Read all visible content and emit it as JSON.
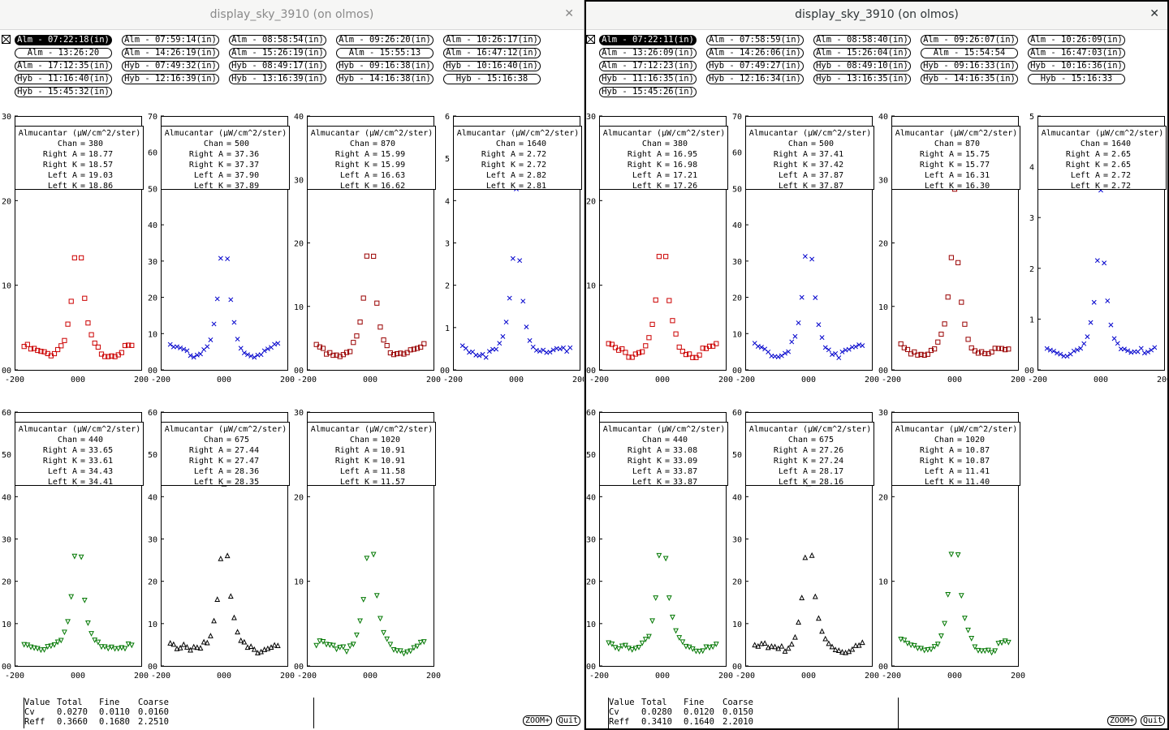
{
  "windows": [
    {
      "title": "display_sky_3910 (on olmos)",
      "buttons": [
        [
          "Alm - 07:22:18(in)",
          "Alm - 07:59:14(in)",
          "Alm - 08:58:54(in)",
          "Alm - 09:26:20(in)",
          "Alm - 10:26:17(in)"
        ],
        [
          "Alm - 13:26:20",
          "Alm - 14:26:19(in)",
          "Alm - 15:26:19(in)",
          "Alm - 15:55:13",
          "Alm - 16:47:12(in)"
        ],
        [
          "Alm - 17:12:35(in)",
          "Hyb - 07:49:32(in)",
          "Hyb - 08:49:17(in)",
          "Hyb - 09:16:38(in)",
          "Hyb - 10:16:40(in)"
        ],
        [
          "Hyb - 11:16:40(in)",
          "Hyb - 12:16:39(in)",
          "Hyb - 13:16:39(in)",
          "Hyb - 14:16:38(in)",
          "Hyb - 15:16:38"
        ],
        [
          "Hyb - 15:45:32(in)"
        ]
      ],
      "active_button": "Alm - 07:22:18(in)",
      "plots": [
        {
          "chan": "380",
          "ra": "18.77",
          "rk": "18.57",
          "la": "19.03",
          "lk": "18.86",
          "ymax": 30,
          "yticks": [
            "30",
            "20",
            "10",
            "00"
          ],
          "marker": "square",
          "color": "#cc0000"
        },
        {
          "chan": "500",
          "ra": "37.36",
          "rk": "37.37",
          "la": "37.90",
          "lk": "37.89",
          "ymax": 70,
          "yticks": [
            "70",
            "60",
            "50",
            "40",
            "30",
            "20",
            "10",
            "00"
          ],
          "marker": "x",
          "color": "#0000cc"
        },
        {
          "chan": "870",
          "ra": "15.99",
          "rk": "15.99",
          "la": "16.63",
          "lk": "16.62",
          "ymax": 40,
          "yticks": [
            "40",
            "30",
            "20",
            "10",
            "00"
          ],
          "marker": "square",
          "color": "#990000"
        },
        {
          "chan": "1640",
          "ra": "2.72",
          "rk": "2.72",
          "la": "2.82",
          "lk": "2.81",
          "ymax": 6,
          "yticks": [
            "6",
            "5",
            "4",
            "3",
            "2",
            "1",
            "00"
          ],
          "marker": "x",
          "color": "#0000cc"
        },
        {
          "chan": "440",
          "ra": "33.65",
          "rk": "33.61",
          "la": "34.43",
          "lk": "34.41",
          "ymax": 60,
          "yticks": [
            "60",
            "50",
            "40",
            "30",
            "20",
            "10",
            "00"
          ],
          "marker": "tri-down",
          "color": "#007700"
        },
        {
          "chan": "675",
          "ra": "27.44",
          "rk": "27.47",
          "la": "28.36",
          "lk": "28.35",
          "ymax": 60,
          "yticks": [
            "60",
            "50",
            "40",
            "30",
            "20",
            "10",
            "00"
          ],
          "marker": "tri-up",
          "color": "#000000"
        },
        {
          "chan": "1020",
          "ra": "10.91",
          "rk": "10.91",
          "la": "11.58",
          "lk": "11.57",
          "ymax": 30,
          "yticks": [
            "30",
            "20",
            "10",
            "00"
          ],
          "marker": "tri-down",
          "color": "#007700"
        }
      ],
      "stats": {
        "headers": [
          "Value",
          "Total",
          "Fine",
          "Coarse"
        ],
        "rows": [
          [
            "Cv",
            "0.0270",
            "0.0110",
            "0.0160"
          ],
          [
            "Reff",
            "0.3660",
            "0.1680",
            "2.2510"
          ]
        ]
      }
    },
    {
      "title": "display_sky_3910 (on olmos)",
      "buttons": [
        [
          "Alm - 07:22:11(in)",
          "Alm - 07:58:59(in)",
          "Alm - 08:58:40(in)",
          "Alm - 09:26:07(in)",
          "Alm - 10:26:09(in)"
        ],
        [
          "Alm - 13:26:09(in)",
          "Alm - 14:26:06(in)",
          "Alm - 15:26:04(in)",
          "Alm - 15:54:54",
          "Alm - 16:47:03(in)"
        ],
        [
          "Alm - 17:12:23(in)",
          "Hyb - 07:49:27(in)",
          "Hyb - 08:49:10(in)",
          "Hyb - 09:16:33(in)",
          "Hyb - 10:16:36(in)"
        ],
        [
          "Hyb - 11:16:35(in)",
          "Hyb - 12:16:34(in)",
          "Hyb - 13:16:35(in)",
          "Hyb - 14:16:35(in)",
          "Hyb - 15:16:33"
        ],
        [
          "Hyb - 15:45:26(in)"
        ]
      ],
      "active_button": "Alm - 07:22:11(in)",
      "plots": [
        {
          "chan": "380",
          "ra": "16.95",
          "rk": "16.98",
          "la": "17.21",
          "lk": "17.26",
          "ymax": 30,
          "yticks": [
            "30",
            "20",
            "10",
            "00"
          ],
          "marker": "square",
          "color": "#cc0000"
        },
        {
          "chan": "500",
          "ra": "37.41",
          "rk": "37.42",
          "la": "37.87",
          "lk": "37.87",
          "ymax": 70,
          "yticks": [
            "70",
            "60",
            "50",
            "40",
            "30",
            "20",
            "10",
            "00"
          ],
          "marker": "x",
          "color": "#0000cc"
        },
        {
          "chan": "870",
          "ra": "15.75",
          "rk": "15.77",
          "la": "16.31",
          "lk": "16.30",
          "ymax": 40,
          "yticks": [
            "40",
            "30",
            "20",
            "10",
            "00"
          ],
          "marker": "square",
          "color": "#990000"
        },
        {
          "chan": "1640",
          "ra": "2.65",
          "rk": "2.65",
          "la": "2.72",
          "lk": "2.72",
          "ymax": 5,
          "yticks": [
            "5",
            "4",
            "3",
            "2",
            "1",
            "00"
          ],
          "marker": "x",
          "color": "#0000cc"
        },
        {
          "chan": "440",
          "ra": "33.08",
          "rk": "33.09",
          "la": "33.87",
          "lk": "33.87",
          "ymax": 60,
          "yticks": [
            "60",
            "50",
            "40",
            "30",
            "20",
            "10",
            "00"
          ],
          "marker": "tri-down",
          "color": "#007700"
        },
        {
          "chan": "675",
          "ra": "27.26",
          "rk": "27.24",
          "la": "28.17",
          "lk": "28.16",
          "ymax": 60,
          "yticks": [
            "60",
            "50",
            "40",
            "30",
            "20",
            "10",
            "00"
          ],
          "marker": "tri-up",
          "color": "#000000"
        },
        {
          "chan": "1020",
          "ra": "10.87",
          "rk": "10.87",
          "la": "11.41",
          "lk": "11.40",
          "ymax": 30,
          "yticks": [
            "30",
            "20",
            "10",
            "00"
          ],
          "marker": "tri-down",
          "color": "#007700"
        }
      ],
      "stats": {
        "headers": [
          "Value",
          "Total",
          "Fine",
          "Coarse"
        ],
        "rows": [
          [
            "Cv",
            "0.0280",
            "0.0120",
            "0.0150"
          ],
          [
            "Reff",
            "0.3410",
            "0.1640",
            "2.2010"
          ]
        ]
      }
    }
  ],
  "plot_labels": {
    "legend_title": "Almucantar (µW/cm^2/ster)",
    "chan": "Chan",
    "right_a": "Right A",
    "right_k": "Right K",
    "left_a": "Left A",
    "left_k": "Left K",
    "xticks": [
      "-200",
      "000",
      "200"
    ]
  },
  "controls": {
    "zoom": "ZOOM+",
    "quit": "Quit"
  }
}
